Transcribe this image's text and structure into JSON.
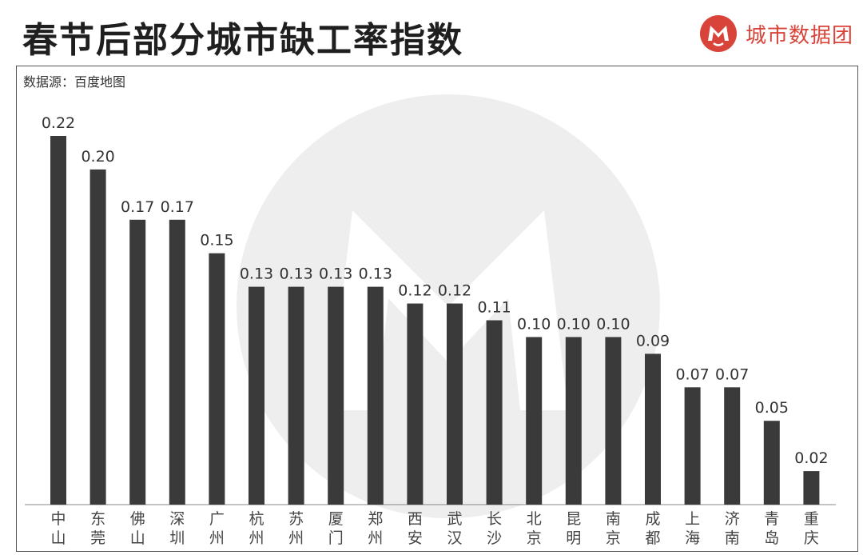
{
  "header": {
    "title": "春节后部分城市缺工率指数",
    "brand_name": "城市数据团"
  },
  "source_note": "数据源：百度地图",
  "colors": {
    "bar": "#3a3a3a",
    "brand": "#d9443a",
    "frame": "#555555"
  },
  "icons": {
    "brand_logo": "city-data-team-logo-icon",
    "watermark": "city-data-team-watermark"
  },
  "chart_data": {
    "type": "bar",
    "title": "春节后部分城市缺工率指数",
    "xlabel": "",
    "ylabel": "",
    "ylim": [
      0,
      0.22
    ],
    "grid": false,
    "legend": "none",
    "categories": [
      "中山",
      "东莞",
      "佛山",
      "深圳",
      "广州",
      "杭州",
      "苏州",
      "厦门",
      "郑州",
      "西安",
      "武汉",
      "长沙",
      "北京",
      "昆明",
      "南京",
      "成都",
      "上海",
      "济南",
      "青岛",
      "重庆"
    ],
    "values": [
      0.22,
      0.2,
      0.17,
      0.17,
      0.15,
      0.13,
      0.13,
      0.13,
      0.13,
      0.12,
      0.12,
      0.11,
      0.1,
      0.1,
      0.1,
      0.09,
      0.07,
      0.07,
      0.05,
      0.02
    ],
    "value_labels": [
      "0.22",
      "0.20",
      "0.17",
      "0.17",
      "0.15",
      "0.13",
      "0.13",
      "0.13",
      "0.13",
      "0.12",
      "0.12",
      "0.11",
      "0.10",
      "0.10",
      "0.10",
      "0.09",
      "0.07",
      "0.07",
      "0.05",
      "0.02"
    ]
  }
}
